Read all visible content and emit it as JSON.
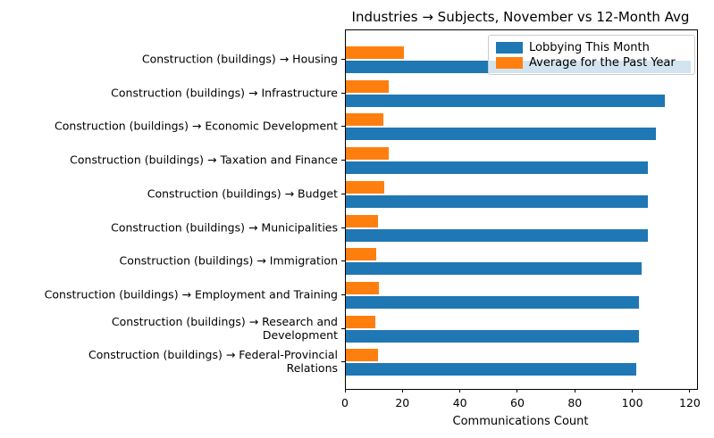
{
  "chart_data": {
    "type": "bar",
    "orientation": "horizontal",
    "title": "Industries → Subjects, November vs 12-Month Avg",
    "xlabel": "Communications Count",
    "ylabel": "",
    "categories": [
      "Construction (buildings) → Housing",
      "Construction (buildings) → Infrastructure",
      "Construction (buildings) → Economic Development",
      "Construction (buildings) → Taxation and Finance",
      "Construction (buildings) → Budget",
      "Construction (buildings) → Municipalities",
      "Construction (buildings) → Immigration",
      "Construction (buildings) → Employment and Training",
      "Construction (buildings) → Research and\nDevelopment",
      "Construction (buildings) → Federal-Provincial\nRelations"
    ],
    "series": [
      {
        "name": "Lobbying This Month",
        "color": "#1f77b4",
        "values": [
          120,
          111,
          108,
          105,
          105,
          105,
          103,
          102,
          102,
          101
        ]
      },
      {
        "name": "Average for the Past Year",
        "color": "#ff7f0e",
        "values": [
          20.1,
          15.0,
          13.2,
          15.0,
          13.3,
          11.1,
          10.5,
          11.4,
          10.3,
          11.1
        ]
      }
    ],
    "xlim": [
      0,
      122.2
    ],
    "xticks": [
      0,
      20,
      40,
      60,
      80,
      100,
      120
    ],
    "legend_position": "upper right",
    "grid": false,
    "legend_labels": [
      "Lobbying This Month",
      "Average for the Past Year"
    ]
  },
  "colors": {
    "bar_blue": "#1f77b4",
    "bar_orange": "#ff7f0e",
    "background": "#ffffff",
    "spine": "#000000",
    "legend_border": "#cccccc"
  }
}
